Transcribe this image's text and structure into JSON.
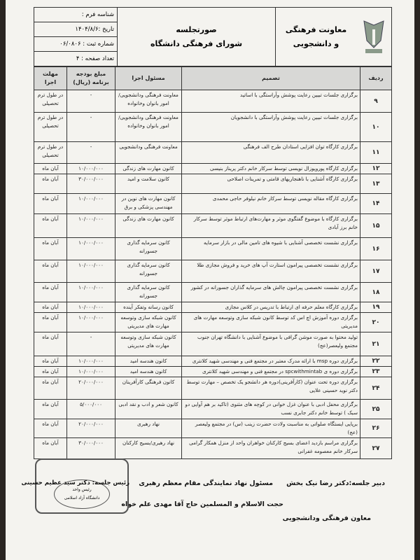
{
  "header": {
    "dept": [
      "معاونت فرهنگی",
      "و دانشجویی"
    ],
    "title": [
      "صورتجلسه",
      "شورای فرهنگی دانشگاه"
    ],
    "form_id": "شناسه فرم :",
    "date": "تاریخ :۱۴۰۴/۸/۶",
    "reg_no": "شماره ثبت : ۰۶/۰۸۰۶",
    "pages": "تعداد صفحه : ۴"
  },
  "columns": [
    "ردیف",
    "تصمیم",
    "مسئول اجرا",
    "مبلغ بودجه برنامه (ریال)",
    "مهلت اجرا"
  ],
  "rows": [
    {
      "n": "۹",
      "d": "برگزاری جلسات تبیین رعایت پوشش وآراستگی با اساتید",
      "r": "معاونت فرهنگی ودانشجویی/امور بانوان وخانواده",
      "b": "-",
      "t": "در طول ترم تحصیلی",
      "h": 32
    },
    {
      "n": "۱۰",
      "d": "برگزاری جلسات تبیین رعایت پوشش وآراستگی با دانشجویان",
      "r": "معاونت فرهنگی ودانشجویی/امور بانوان وخانواده",
      "b": "-",
      "t": "در طول ترم تحصیلی",
      "h": 42
    },
    {
      "n": "۱۱",
      "d": "برگزاری کارگاه توان افزایی استادان طرح الف فرهنگی",
      "r": "معاونت فرهنگی ودانشجویی",
      "b": "-",
      "t": "در طول ترم تحصیلی",
      "h": 31
    },
    {
      "n": "۱۲",
      "d": "برگزاری کارگاه پوروپوزال نویسی توسط سرکار خانم دکتر پریناز بنیسی",
      "r": "کانون مهارت های زندگی",
      "b": "۱۰/۰۰۰/۰۰۰",
      "t": "آبان ماه",
      "h": 14
    },
    {
      "n": "۱۳",
      "d": "برگزاری کارگاه آشنایی با ناهنجاریهای قامتی و تمرینات اصلاحی",
      "r": "کانون سلامت و امید",
      "b": "۳۰/۰۰۰/۰۰۰",
      "t": "آبان ماه",
      "h": 28
    },
    {
      "n": "۱۴",
      "d": "برگزاری کارگاه مقاله نویسی توسط سرکار خانم نیلوفر حاجی محمدی",
      "r": "کانون مهارت های نوین در مهندسی پزشکی و برق",
      "b": "۱۰/۰۰۰/۰۰۰",
      "t": "آبان ماه",
      "h": 29
    },
    {
      "n": "۱۵",
      "d": "برگزاری کارگاه با موضوع گفتگوی موثر و مهارت‌های ارتباط موثر توسط سرکار خانم برز آبادی",
      "r": "کانون مهارت های زندگی",
      "b": "۱۰/۰۰۰/۰۰۰",
      "t": "آبان ماه",
      "h": 34
    },
    {
      "n": "۱۶",
      "d": "برگزاری نشست تخصصی آشنایی با شیوه های تامین مالی در بازار سرمایه",
      "r": "کانون سرمایه گذاری جسورانه",
      "b": "۱۰/۰۰۰/۰۰۰",
      "t": "آبان ماه",
      "h": 32
    },
    {
      "n": "۱۷",
      "d": "برگزاری نشست تخصصی پیرامون استارت آپ های خرید و فروش مجازی طلا",
      "r": "کانون سرمایه گذاری جسورانه",
      "b": "۱۰/۰۰۰/۰۰۰",
      "t": "آبان ماه",
      "h": 32
    },
    {
      "n": "۱۸",
      "d": "برگزاری نشست تخصصی پیرامون چالش های سرمایه گذاران جسورانه در کشور",
      "r": "کانون سرمایه گذاری جسورانه",
      "b": "۱۰/۰۰۰/۰۰۰",
      "t": "آبان ماه",
      "h": 28
    },
    {
      "n": "۱۹",
      "d": "برگزاری کارگاه معلم حرفه ای ارتباط با تدریس در کلاس مجازی",
      "r": "کانون رسانه وتفکر آینده",
      "b": "۱۰/۰۰۰/۰۰۰",
      "t": "آبان ماه",
      "h": 15
    },
    {
      "n": "۲۰",
      "d": "برگزاری دوره آموزش اچ اس کد توسط کانون شبکه سازی وتوسعه مهارت های مدیریتی",
      "r": "کانون شبکه سازی وتوسعه مهارت های مدیریتی",
      "b": "۱۰/۰۰۰/۰۰۰",
      "t": "آبان ماه",
      "h": 28
    },
    {
      "n": "۲۱",
      "d": "تولید محتوا به صورت موشن گرافی با موضوع آشنایی با دانشگاه تهران جنوب مجتمع ولیعصر(عج)",
      "r": "کانون شبکه سازی وتوسعه مهارت های مدیریتی",
      "b": "-",
      "t": "آبان ماه",
      "h": 34
    },
    {
      "n": "۲۲",
      "d": "برگزاری دوره msp با ارائه مدرک معتبر در مجتمع فنی و مهندسی شهید کلانتری",
      "r": "کانون هندسه امید",
      "b": "۱۰/۰۰۰/۰۰۰",
      "t": "آبان ماه",
      "h": 15
    },
    {
      "n": "۲۳",
      "d": "برگزاری دوره ی spcwithmintab در مجتمع فنی و مهندسی شهید کلانتری",
      "r": "کانون هندسه امید",
      "b": "۱۰/۰۰۰/۰۰۰",
      "t": "آبان ماه",
      "h": 14
    },
    {
      "n": "۲۴",
      "d": "برگزاری دوره تحت عنوان (کارآفرینی)دوره هر دانشجو یک تخصص – مهارت توسط دکتر نوید حسینی علایی",
      "r": "کانون فرهنگی کارآفرینان",
      "b": "۲۰/۰۰۰/۰۰۰",
      "t": "آبان ماه",
      "h": 32
    },
    {
      "n": "۲۵",
      "d": "برگزاری محفل ادبی با عنوان غزل خوانی در کوچه های مثنوی (تاکید بر هم آوایی دو سبک ) توسط خانم دکتر جابری نسب",
      "r": "کانون شعر و ادب و نقد ادبی",
      "b": "۵/۰۰۰/۰۰۰",
      "t": "آبان ماه",
      "h": 28
    },
    {
      "n": "۲۶",
      "d": "برپایی ایستگاه صلواتی به مناسبت ولادت حضرت زینب (س) در مجتمع ولیعصر (عج)",
      "r": "نهاد رهبری",
      "b": "۲۰/۰۰۰/۰۰۰",
      "t": "آبان ماه",
      "h": 15
    },
    {
      "n": "۲۷",
      "d": "برگزاری مراسم بازدید اعضای بسیج کارکنان خواهران واحد از منزل همکار گرامی سرکار خانم معصومه غفرانی",
      "r": "نهاد رهبری/بسیج کارکنان",
      "b": "۳۰/۰۰۰/۰۰۰",
      "t": "آبان ماه",
      "h": 30
    }
  ],
  "signatures": {
    "secretary": "دبیر جلسه:دکتر رضا نیک بخش",
    "secretary_role": "معاون فرهنگی ودانشجویی",
    "rep": "مسئول نهاد نمایندگی مقام معظم رهبری",
    "rep_name": "حجت الاسلام و المسلمین حاج آقا مهدی علم خواه",
    "chair": "رئیس جلسه: دکتر سید عظیم حسینی",
    "stamp_text": [
      "رئیس واحد",
      "دانشگاه آزاد اسلامی",
      "واحد تهران جنوب"
    ]
  }
}
